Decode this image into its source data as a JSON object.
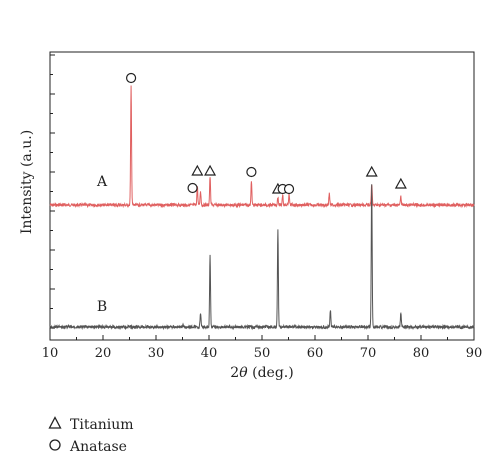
{
  "chart_data": {
    "type": "line",
    "xlabel": "2θ (deg.)",
    "ylabel": "Intensity (a.u.)",
    "xlim": [
      10,
      90
    ],
    "x_ticks": [
      10,
      20,
      30,
      40,
      50,
      60,
      70,
      80,
      90
    ],
    "grid": false,
    "y_ticks_labeled": false,
    "series": [
      {
        "name": "A",
        "color": "#e06060",
        "peaks": [
          {
            "x": 25.3,
            "intensity": 1.0
          },
          {
            "x": 37.8,
            "intensity": 0.16
          },
          {
            "x": 38.4,
            "intensity": 0.12
          },
          {
            "x": 40.2,
            "intensity": 0.24
          },
          {
            "x": 48.0,
            "intensity": 0.2
          },
          {
            "x": 53.0,
            "intensity": 0.07
          },
          {
            "x": 53.9,
            "intensity": 0.09
          },
          {
            "x": 55.1,
            "intensity": 0.09
          },
          {
            "x": 62.7,
            "intensity": 0.1
          },
          {
            "x": 70.7,
            "intensity": 0.18
          },
          {
            "x": 76.2,
            "intensity": 0.07
          }
        ]
      },
      {
        "name": "B",
        "color": "#555555",
        "peaks": [
          {
            "x": 35.1,
            "intensity": 0.02
          },
          {
            "x": 38.4,
            "intensity": 0.1
          },
          {
            "x": 40.2,
            "intensity": 0.5
          },
          {
            "x": 53.0,
            "intensity": 0.69
          },
          {
            "x": 62.9,
            "intensity": 0.12
          },
          {
            "x": 70.7,
            "intensity": 1.0
          },
          {
            "x": 76.2,
            "intensity": 0.1
          }
        ]
      }
    ],
    "markers": [
      {
        "symbol": "circle",
        "x": 25.3,
        "series": "A"
      },
      {
        "symbol": "triangle",
        "x": 37.8,
        "series": "A"
      },
      {
        "symbol": "triangle",
        "x": 40.2,
        "series": "A"
      },
      {
        "symbol": "circle",
        "x": 36.9,
        "series": "A"
      },
      {
        "symbol": "circle",
        "x": 48.0,
        "series": "A"
      },
      {
        "symbol": "triangle",
        "x": 53.0,
        "series": "A"
      },
      {
        "symbol": "circle",
        "x": 53.9,
        "series": "A"
      },
      {
        "symbol": "circle",
        "x": 55.1,
        "series": "A"
      },
      {
        "symbol": "triangle",
        "x": 70.7,
        "series": "A"
      },
      {
        "symbol": "triangle",
        "x": 76.2,
        "series": "A"
      }
    ],
    "legend": [
      {
        "symbol": "triangle",
        "label": "Titanium"
      },
      {
        "symbol": "circle",
        "label": "Anatase"
      }
    ],
    "legend_position": "bottom-left"
  }
}
